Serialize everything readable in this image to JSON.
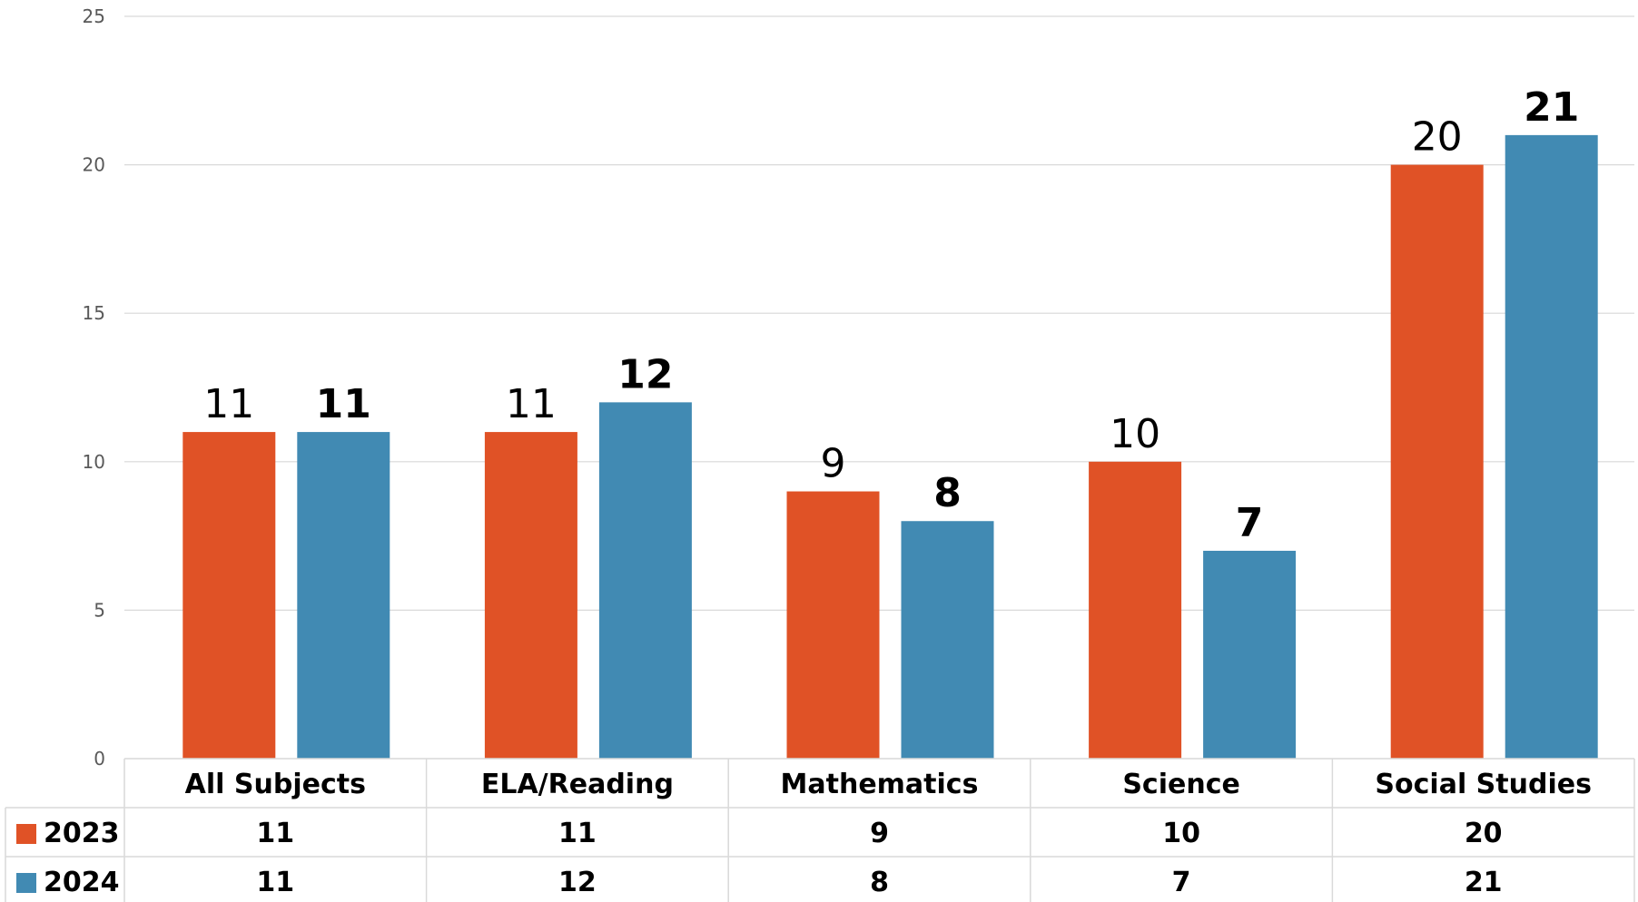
{
  "chart_data": {
    "type": "bar",
    "categories": [
      "All Subjects",
      "ELA/Reading",
      "Mathematics",
      "Science",
      "Social Studies"
    ],
    "series": [
      {
        "name": "2023",
        "color": "#E05226",
        "values": [
          11,
          11,
          9,
          10,
          20
        ]
      },
      {
        "name": "2024",
        "color": "#418AB3",
        "values": [
          11,
          12,
          8,
          7,
          21
        ]
      }
    ],
    "y_ticks": [
      0,
      5,
      10,
      15,
      20,
      25
    ],
    "ylim": [
      0,
      25
    ],
    "grid": true,
    "data_table": true,
    "legend": "in data table",
    "title": "",
    "xlabel": "",
    "ylabel": ""
  }
}
